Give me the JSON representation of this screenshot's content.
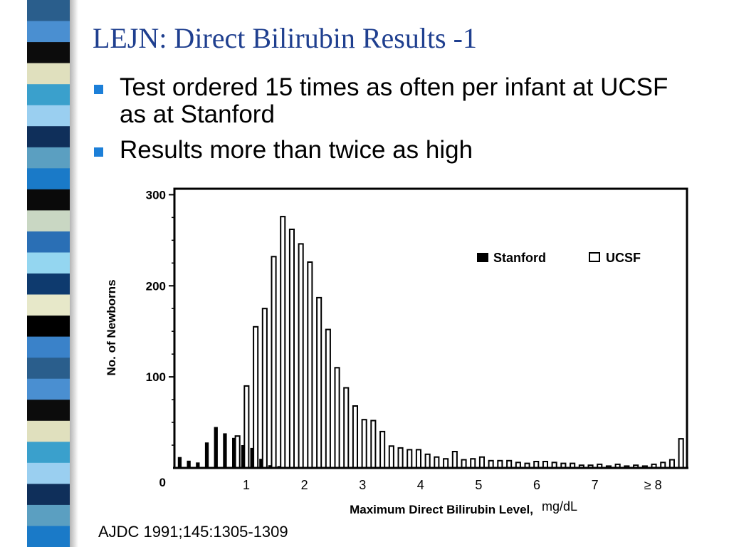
{
  "slide": {
    "title": "LEJN: Direct Bilirubin Results -1",
    "bullets": [
      "Test ordered 15 times as often per infant at UCSF as at Stanford",
      "Results more than twice as high"
    ],
    "citation": "AJDC 1991;145:1305-1309",
    "bullet_color": "#1c7fd8",
    "title_color": "#1f3f8f"
  },
  "stripe_colors": [
    "#2a5e8c",
    "#4a8fd1",
    "#0c0c0c",
    "#e0e0be",
    "#3aa0cc",
    "#9acff0",
    "#0f2f5a",
    "#5b9fc1",
    "#1a7ac8",
    "#0a0a0a",
    "#c9d7c3",
    "#2a6fb5",
    "#94d6f0",
    "#0e3a6e",
    "#e7e8c9",
    "#000000",
    "#3a82c9"
  ],
  "chart_data": {
    "type": "bar",
    "ylabel": "No. of Newborns",
    "xlabel": "Maximum Direct Bilirubin Level,",
    "xunit": "mg/dL",
    "ylim": [
      0,
      305
    ],
    "yticks": [
      0,
      100,
      200,
      300
    ],
    "x_tick_labels": [
      "1",
      "2",
      "3",
      "4",
      "5",
      "6",
      "7",
      "≥ 8"
    ],
    "grid": false,
    "legend": {
      "position": "top-right",
      "entries": [
        "Stanford",
        "UCSF"
      ]
    },
    "series": [
      {
        "name": "Stanford",
        "color": "#000000",
        "fill": "solid",
        "values": [
          12,
          8,
          6,
          28,
          45,
          38,
          33,
          25,
          22,
          10,
          3,
          2,
          0,
          1,
          0,
          0,
          0,
          0,
          0,
          0,
          0,
          0,
          0,
          0,
          0,
          0,
          0,
          0,
          0,
          0,
          0,
          0,
          0,
          0,
          0,
          0,
          0,
          0,
          0,
          0,
          0,
          0,
          0,
          0,
          0,
          0,
          0,
          0,
          0,
          0,
          0,
          0,
          0,
          0,
          0,
          0
        ]
      },
      {
        "name": "UCSF",
        "color": "#000000",
        "fill": "open",
        "values": [
          0,
          0,
          0,
          0,
          0,
          0,
          35,
          90,
          155,
          175,
          232,
          276,
          262,
          246,
          226,
          187,
          152,
          110,
          88,
          68,
          53,
          52,
          40,
          24,
          22,
          20,
          20,
          15,
          12,
          10,
          18,
          9,
          10,
          12,
          8,
          8,
          8,
          6,
          5,
          7,
          7,
          6,
          5,
          5,
          3,
          3,
          4,
          2,
          4,
          2,
          3,
          2,
          4,
          6,
          9,
          32
        ]
      }
    ]
  }
}
